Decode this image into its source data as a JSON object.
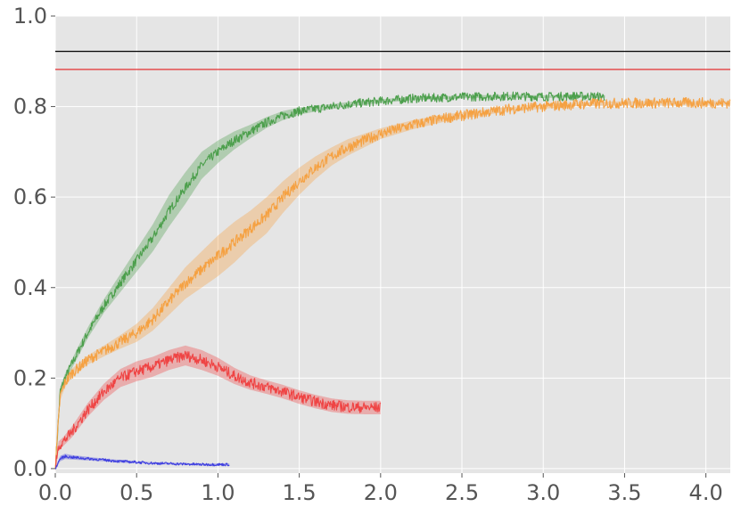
{
  "chart_data": {
    "type": "line",
    "title": "",
    "xlabel": "",
    "ylabel": "",
    "xlim": [
      0,
      4.15
    ],
    "ylim": [
      -0.01,
      1.0
    ],
    "grid": true,
    "legend": "none",
    "background": "#e5e5e5",
    "gridColor": "#ffffff",
    "x_ticks": [
      0.0,
      0.5,
      1.0,
      1.5,
      2.0,
      2.5,
      3.0,
      3.5,
      4.0
    ],
    "x_tick_labels": [
      "0.0",
      "0.5",
      "1.0",
      "1.5",
      "2.0",
      "2.5",
      "3.0",
      "3.5",
      "4.0"
    ],
    "y_ticks": [
      0.0,
      0.2,
      0.4,
      0.6,
      0.8,
      1.0
    ],
    "y_tick_labels": [
      "0.0",
      "0.2",
      "0.4",
      "0.6",
      "0.8",
      "1.0"
    ],
    "hlines": [
      {
        "y": 0.922,
        "color": "#000000"
      },
      {
        "y": 0.882,
        "color": "#e41a1c"
      }
    ],
    "series": [
      {
        "color": "#4c9f4c",
        "noise": 0.01,
        "x": [
          0,
          0.03,
          0.06,
          0.1,
          0.2,
          0.3,
          0.4,
          0.5,
          0.6,
          0.7,
          0.8,
          0.9,
          1.0,
          1.1,
          1.2,
          1.3,
          1.4,
          1.5,
          1.6,
          1.8,
          2.0,
          2.2,
          2.4,
          2.6,
          2.8,
          3.0,
          3.2,
          3.38
        ],
        "y": [
          0.0,
          0.17,
          0.2,
          0.23,
          0.3,
          0.36,
          0.41,
          0.46,
          0.51,
          0.57,
          0.62,
          0.67,
          0.7,
          0.725,
          0.745,
          0.765,
          0.78,
          0.79,
          0.795,
          0.805,
          0.812,
          0.818,
          0.82,
          0.822,
          0.823,
          0.822,
          0.823,
          0.822
        ],
        "band": [
          0.005,
          0.01,
          0.01,
          0.01,
          0.012,
          0.015,
          0.02,
          0.025,
          0.03,
          0.035,
          0.035,
          0.03,
          0.025,
          0.02,
          0.015,
          0.012,
          0.01,
          0.008,
          0.006,
          0.005,
          0.004,
          0.004,
          0.003,
          0.003,
          0.003,
          0.003,
          0.003,
          0.003
        ]
      },
      {
        "color": "#f5a142",
        "noise": 0.012,
        "x": [
          0,
          0.03,
          0.06,
          0.1,
          0.2,
          0.3,
          0.4,
          0.5,
          0.6,
          0.7,
          0.8,
          0.9,
          1.0,
          1.1,
          1.2,
          1.3,
          1.4,
          1.5,
          1.6,
          1.7,
          1.8,
          1.9,
          2.0,
          2.2,
          2.4,
          2.6,
          2.8,
          3.0,
          3.2,
          3.4,
          3.6,
          3.8,
          4.0,
          4.15
        ],
        "y": [
          0.0,
          0.16,
          0.19,
          0.21,
          0.24,
          0.26,
          0.28,
          0.3,
          0.33,
          0.37,
          0.41,
          0.44,
          0.47,
          0.5,
          0.53,
          0.56,
          0.6,
          0.635,
          0.665,
          0.69,
          0.71,
          0.725,
          0.74,
          0.76,
          0.775,
          0.785,
          0.795,
          0.8,
          0.805,
          0.807,
          0.808,
          0.808,
          0.808,
          0.808
        ],
        "band": [
          0.005,
          0.01,
          0.01,
          0.01,
          0.01,
          0.012,
          0.015,
          0.02,
          0.025,
          0.03,
          0.035,
          0.04,
          0.045,
          0.045,
          0.04,
          0.04,
          0.035,
          0.03,
          0.025,
          0.02,
          0.018,
          0.015,
          0.012,
          0.01,
          0.008,
          0.006,
          0.005,
          0.005,
          0.004,
          0.004,
          0.004,
          0.004,
          0.004,
          0.004
        ]
      },
      {
        "color": "#ef4444",
        "noise": 0.012,
        "x": [
          0,
          0.02,
          0.05,
          0.1,
          0.2,
          0.3,
          0.4,
          0.5,
          0.6,
          0.7,
          0.8,
          0.9,
          1.0,
          1.1,
          1.2,
          1.3,
          1.4,
          1.5,
          1.6,
          1.7,
          1.8,
          1.9,
          2.0
        ],
        "y": [
          0.0,
          0.05,
          0.06,
          0.08,
          0.13,
          0.17,
          0.2,
          0.215,
          0.225,
          0.24,
          0.25,
          0.24,
          0.225,
          0.205,
          0.19,
          0.18,
          0.17,
          0.158,
          0.148,
          0.14,
          0.136,
          0.135,
          0.135
        ],
        "band": [
          0.005,
          0.01,
          0.01,
          0.012,
          0.015,
          0.018,
          0.02,
          0.022,
          0.022,
          0.022,
          0.022,
          0.022,
          0.02,
          0.018,
          0.016,
          0.015,
          0.015,
          0.015,
          0.015,
          0.015,
          0.015,
          0.015,
          0.015
        ]
      },
      {
        "color": "#3f3fe0",
        "noise": 0.003,
        "x": [
          0,
          0.03,
          0.06,
          0.1,
          0.2,
          0.3,
          0.4,
          0.5,
          0.6,
          0.7,
          0.8,
          0.9,
          1.0,
          1.07
        ],
        "y": [
          0.0,
          0.022,
          0.027,
          0.025,
          0.022,
          0.019,
          0.016,
          0.014,
          0.012,
          0.011,
          0.01,
          0.009,
          0.009,
          0.009
        ],
        "band": [
          0.002,
          0.006,
          0.006,
          0.005,
          0.004,
          0.003,
          0.003,
          0.002,
          0.002,
          0.002,
          0.002,
          0.002,
          0.002,
          0.002
        ]
      }
    ]
  }
}
